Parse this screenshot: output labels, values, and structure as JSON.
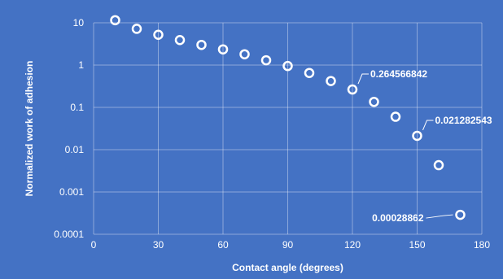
{
  "chart_data": {
    "type": "scatter",
    "title": "",
    "xlabel": "Contact angle (degrees)",
    "ylabel": "Normalized work of adhesion",
    "xlim": [
      0,
      180
    ],
    "ylim": [
      0.0001,
      10
    ],
    "y_scale": "log",
    "grid": true,
    "background_color": "#4472c4",
    "marker_color": "#ffffff",
    "x_ticks": [
      {
        "value": 0,
        "label": "0"
      },
      {
        "value": 30,
        "label": "30"
      },
      {
        "value": 60,
        "label": "60"
      },
      {
        "value": 90,
        "label": "90"
      },
      {
        "value": 120,
        "label": "120"
      },
      {
        "value": 150,
        "label": "150"
      },
      {
        "value": 180,
        "label": "180"
      }
    ],
    "y_ticks": [
      {
        "value": 0.0001,
        "label": "0.0001"
      },
      {
        "value": 0.001,
        "label": "0.001"
      },
      {
        "value": 0.01,
        "label": "0.01"
      },
      {
        "value": 0.1,
        "label": "0.1"
      },
      {
        "value": 1,
        "label": "1"
      },
      {
        "value": 10,
        "label": "10"
      }
    ],
    "points": [
      {
        "x": 10,
        "y": 11.5
      },
      {
        "x": 20,
        "y": 7.2
      },
      {
        "x": 30,
        "y": 5.2
      },
      {
        "x": 40,
        "y": 3.9
      },
      {
        "x": 50,
        "y": 3.0
      },
      {
        "x": 60,
        "y": 2.35
      },
      {
        "x": 70,
        "y": 1.8
      },
      {
        "x": 80,
        "y": 1.3
      },
      {
        "x": 90,
        "y": 0.95
      },
      {
        "x": 100,
        "y": 0.65
      },
      {
        "x": 110,
        "y": 0.42
      },
      {
        "x": 120,
        "y": 0.264566842
      },
      {
        "x": 130,
        "y": 0.135
      },
      {
        "x": 140,
        "y": 0.06
      },
      {
        "x": 150,
        "y": 0.021282543
      },
      {
        "x": 160,
        "y": 0.0043
      },
      {
        "x": 170,
        "y": 0.00028862
      }
    ],
    "annotations": [
      {
        "x": 120,
        "y": 0.264566842,
        "text": "0.264566842",
        "placement": "upper-right"
      },
      {
        "x": 150,
        "y": 0.021282543,
        "text": "0.021282543",
        "placement": "upper-right"
      },
      {
        "x": 170,
        "y": 0.00028862,
        "text": "0.00028862",
        "placement": "left"
      }
    ]
  }
}
